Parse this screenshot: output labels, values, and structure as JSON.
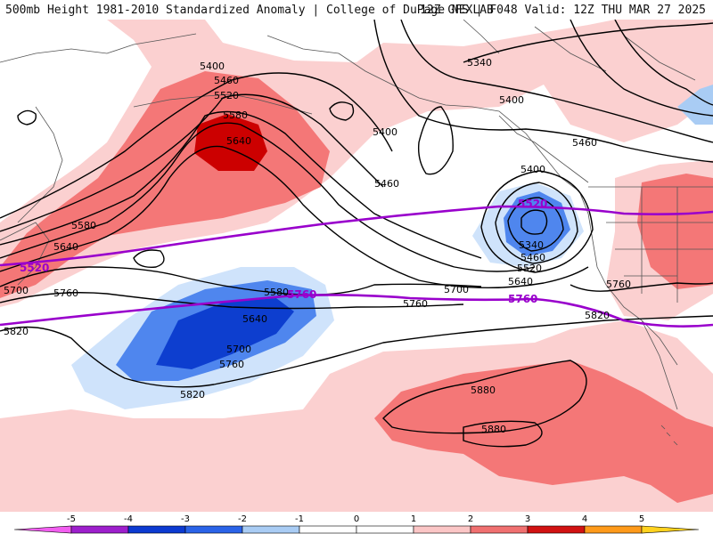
{
  "header": {
    "left_title": "500mb Height 1981-2010 Standardized Anomaly | College of DuPage NEXLAB",
    "right_title": "12Z GFS | F048 Valid: 12Z THU MAR 27 2025"
  },
  "colors": {
    "anom_pos_1": "#fbd0d0",
    "anom_pos_2": "#f47777",
    "anom_pos_3": "#cc0000",
    "anom_neg_1": "#cfe3fb",
    "anom_neg_2": "#4f86ee",
    "anom_neg_3": "#0d3ecf",
    "contour": "#000000",
    "reference_contour": "#9900cc",
    "land_outline": "#555555"
  },
  "contour_labels": {
    "c5400_nw": "5400",
    "c5460_nw": "5460",
    "c5520_nw": "5520",
    "c5580_nw": "5580",
    "c5640_nw": "5640",
    "c5340_n": "5340",
    "c5400_ne": "5400",
    "c5400_ak": "5400",
    "c5460_ne": "5460",
    "c5460_ak": "5460",
    "c5400_low": "5400",
    "c5340_low": "5340",
    "c5460_low": "5460",
    "c5520_low": "5520",
    "c5640_low": "5640",
    "c5760_ca": "5760",
    "c5700_mid": "5700",
    "c5760_mid": "5760",
    "c5820_mx": "5820",
    "c5580_w": "5580",
    "c5640_w": "5640",
    "c5700_w": "5700",
    "c5760_w": "5760",
    "c5820_w": "5820",
    "c5580_c": "5580",
    "c5640_c": "5640",
    "c5700_c": "5700",
    "c5760_c": "5760",
    "c5820_c": "5820",
    "c5880_a": "5880",
    "c5880_b": "5880"
  },
  "reference_labels": {
    "p5520_w": "5520",
    "p5520_e": "5520",
    "p5760_w": "5760",
    "p5760_e": "5760"
  },
  "scale": {
    "ticks": [
      "-5",
      "-4",
      "-3",
      "-2",
      "-1",
      "0",
      "1",
      "2",
      "3",
      "4",
      "5"
    ],
    "colors": [
      "#f25ef0",
      "#9d1fcc",
      "#0c3ad1",
      "#2a63e8",
      "#a9ccf4",
      "#ffffff",
      "#ffffff",
      "#fbc6c6",
      "#f07070",
      "#d11212",
      "#ff9a1a",
      "#ffd21f"
    ]
  }
}
